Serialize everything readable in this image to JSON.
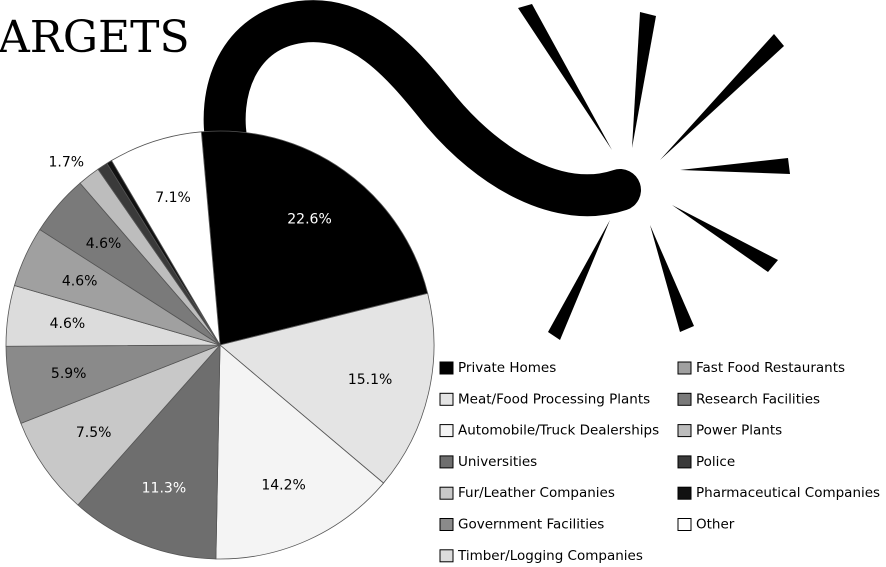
{
  "chart_data": {
    "type": "pie",
    "title": "ARGETS",
    "categories": [
      "Private Homes",
      "Meat/Food Processing Plants",
      "Automobile/Truck Dealerships",
      "Universities",
      "Fur/Leather Companies",
      "Government Facilities",
      "Timber/Logging Companies",
      "Fast Food Restaurants",
      "Research Facilities",
      "Power Plants",
      "Police",
      "Pharmaceutical Companies",
      "Other"
    ],
    "values": [
      22.6,
      15.1,
      14.2,
      11.3,
      7.5,
      5.9,
      4.6,
      4.6,
      4.6,
      1.7,
      0.8,
      0.4,
      7.1
    ],
    "value_labels": [
      "22.6%",
      "15.1%",
      "14.2%",
      "11.3%",
      "7.5%",
      "5.9%",
      "4.6%",
      "4.6%",
      "4.6%",
      "1.7%",
      "0.8%",
      "0.4%",
      "7.1%"
    ],
    "colors": [
      "#000000",
      "#e4e4e4",
      "#f4f4f4",
      "#6e6e6e",
      "#c8c8c8",
      "#8a8a8a",
      "#dcdcdc",
      "#a0a0a0",
      "#7a7a7a",
      "#bdbdbd",
      "#3a3a3a",
      "#111111",
      "#ffffff"
    ],
    "legend_columns": 2
  }
}
